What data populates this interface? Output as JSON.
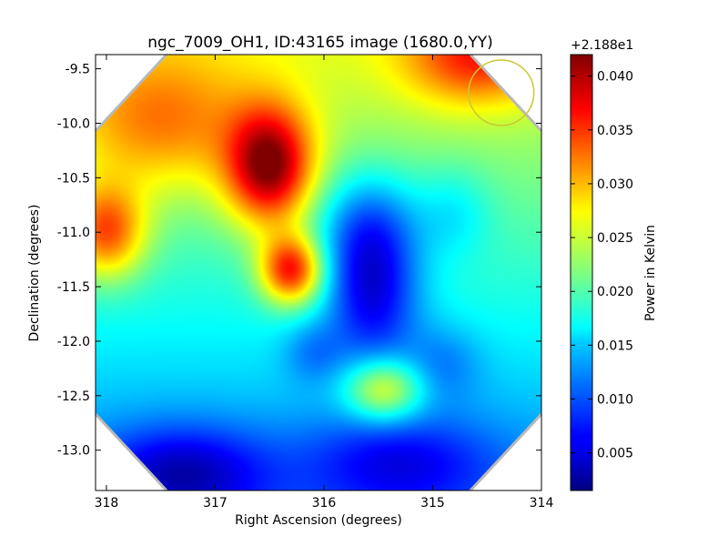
{
  "chart_data": {
    "type": "heatmap",
    "title": "ngc_7009_OH1, ID:43165 image (1680.0,YY)",
    "xlabel": "Right Ascension (degrees)",
    "ylabel": "Declination (degrees)",
    "colorbar_label": "Power in Kelvin",
    "colorbar_offset": "+2.188e1",
    "colormap": "jet",
    "xlim": [
      318.1,
      314.0
    ],
    "ylim": [
      -13.37,
      -9.37
    ],
    "xticks": [
      318,
      317,
      316,
      315,
      314
    ],
    "yticks": [
      -9.5,
      -10.0,
      -10.5,
      -11.0,
      -11.5,
      -12.0,
      -12.5,
      -13.0
    ],
    "colorbar_range": [
      0.0015,
      0.042
    ],
    "colorbar_ticks": [
      0.005,
      0.01,
      0.015,
      0.02,
      0.025,
      0.03,
      0.035,
      0.04
    ],
    "beam_circle": {
      "ra": 314.37,
      "dec": -9.72,
      "radius_deg": 0.3,
      "color": "#c8c832"
    },
    "blobs": [
      {
        "ra": 316.5,
        "dec": -10.4,
        "sigma_ra": 0.28,
        "sigma_dec": 0.38,
        "amp": 0.02
      },
      {
        "ra": 316.3,
        "dec": -11.35,
        "sigma_ra": 0.2,
        "sigma_dec": 0.22,
        "amp": 0.018
      },
      {
        "ra": 318.0,
        "dec": -11.0,
        "sigma_ra": 0.25,
        "sigma_dec": 0.3,
        "amp": 0.014
      },
      {
        "ra": 314.6,
        "dec": -9.4,
        "sigma_ra": 0.45,
        "sigma_dec": 0.3,
        "amp": 0.011
      },
      {
        "ra": 317.5,
        "dec": -10.0,
        "sigma_ra": 0.6,
        "sigma_dec": 0.45,
        "amp": 0.009
      },
      {
        "ra": 315.45,
        "dec": -12.45,
        "sigma_ra": 0.25,
        "sigma_dec": 0.2,
        "amp": 0.012
      },
      {
        "ra": 315.55,
        "dec": -11.5,
        "sigma_ra": 0.3,
        "sigma_dec": 0.5,
        "amp": -0.012
      },
      {
        "ra": 315.6,
        "dec": -10.9,
        "sigma_ra": 0.35,
        "sigma_dec": 0.35,
        "amp": -0.006
      },
      {
        "ra": 314.8,
        "dec": -10.8,
        "sigma_ra": 0.25,
        "sigma_dec": 0.3,
        "amp": -0.004
      },
      {
        "ra": 317.3,
        "dec": -13.2,
        "sigma_ra": 0.55,
        "sigma_dec": 0.3,
        "amp": -0.009
      },
      {
        "ra": 315.3,
        "dec": -13.1,
        "sigma_ra": 0.6,
        "sigma_dec": 0.3,
        "amp": -0.007
      },
      {
        "ra": 316.1,
        "dec": -12.1,
        "sigma_ra": 0.2,
        "sigma_dec": 0.2,
        "amp": -0.004
      },
      {
        "ra": 314.9,
        "dec": -12.2,
        "sigma_ra": 0.25,
        "sigma_dec": 0.25,
        "amp": -0.004
      }
    ],
    "base_level": 0.0185,
    "gradient_dec": 0.0035
  }
}
